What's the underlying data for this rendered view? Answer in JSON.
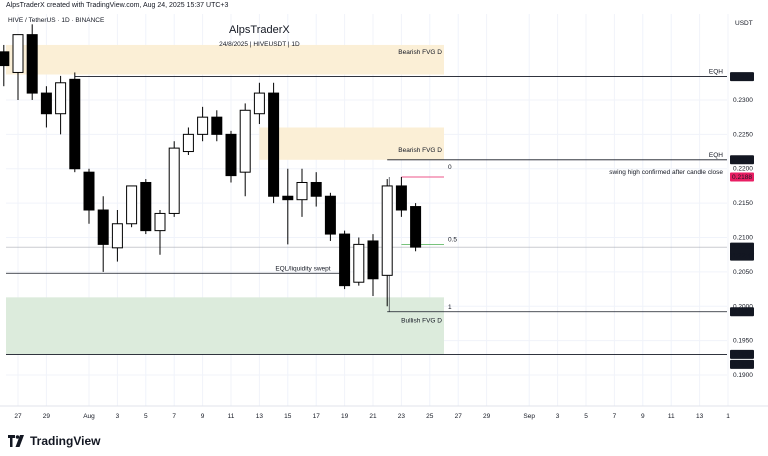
{
  "header": {
    "created_by": "AlpsTraderX created with TradingView.com, Aug 24, 2025 15:37 UTC+3",
    "symbol_line": "HIVE / TetherUS · 1D · BINANCE",
    "watermark_title": "AlpsTraderX",
    "watermark_sub": "24/8/2025 | HIVEUSDT | 1D"
  },
  "footer": {
    "brand": "TradingView"
  },
  "colors": {
    "bear_zone": "#fbefd6",
    "bull_zone": "#dcebdc",
    "swing_line": "#e91e63",
    "mid_line": "#4caf50",
    "candle_up": "#ffffff",
    "candle_down": "#000000",
    "line": "#131722",
    "grid": "#f0f3fa"
  },
  "chart_data": {
    "type": "candlestick",
    "y_unit": "USDT",
    "ylim": [
      0.1855,
      0.2425
    ],
    "yticks": [
      0.19,
      0.195,
      0.2,
      0.205,
      0.21,
      0.215,
      0.22,
      0.225,
      0.23
    ],
    "ytick_labels": [
      "0.1900",
      "0.1950",
      "0.2000",
      "0.2050",
      "0.2100",
      "0.2150",
      "0.2200",
      "0.2250",
      "0.2300"
    ],
    "xticks": [
      {
        "label": "27",
        "bar": -5
      },
      {
        "label": "29",
        "bar": -3
      },
      {
        "label": "Aug",
        "bar": 0
      },
      {
        "label": "3",
        "bar": 2
      },
      {
        "label": "5",
        "bar": 4
      },
      {
        "label": "7",
        "bar": 6
      },
      {
        "label": "9",
        "bar": 8
      },
      {
        "label": "11",
        "bar": 10
      },
      {
        "label": "13",
        "bar": 12
      },
      {
        "label": "15",
        "bar": 14
      },
      {
        "label": "17",
        "bar": 16
      },
      {
        "label": "19",
        "bar": 18
      },
      {
        "label": "21",
        "bar": 20
      },
      {
        "label": "23",
        "bar": 22
      },
      {
        "label": "25",
        "bar": 24
      },
      {
        "label": "27",
        "bar": 26
      },
      {
        "label": "29",
        "bar": 28
      },
      {
        "label": "Sep",
        "bar": 31
      },
      {
        "label": "3",
        "bar": 33
      },
      {
        "label": "5",
        "bar": 35
      },
      {
        "label": "7",
        "bar": 37
      },
      {
        "label": "9",
        "bar": 39
      },
      {
        "label": "11",
        "bar": 41
      },
      {
        "label": "13",
        "bar": 43
      },
      {
        "label": "1",
        "bar": 45
      }
    ],
    "candles": [
      {
        "date": "2025-07-26",
        "o": 0.237,
        "h": 0.238,
        "l": 0.232,
        "c": 0.235
      },
      {
        "date": "2025-07-27",
        "o": 0.234,
        "h": 0.2395,
        "l": 0.23,
        "c": 0.2395
      },
      {
        "date": "2025-07-28",
        "o": 0.2395,
        "h": 0.241,
        "l": 0.23,
        "c": 0.231
      },
      {
        "date": "2025-07-29",
        "o": 0.231,
        "h": 0.232,
        "l": 0.226,
        "c": 0.228
      },
      {
        "date": "2025-07-30",
        "o": 0.228,
        "h": 0.2335,
        "l": 0.225,
        "c": 0.2325
      },
      {
        "date": "2025-07-31",
        "o": 0.233,
        "h": 0.234,
        "l": 0.2195,
        "c": 0.22
      },
      {
        "date": "2025-08-01",
        "o": 0.2195,
        "h": 0.22,
        "l": 0.212,
        "c": 0.214
      },
      {
        "date": "2025-08-02",
        "o": 0.214,
        "h": 0.216,
        "l": 0.205,
        "c": 0.209
      },
      {
        "date": "2025-08-03",
        "o": 0.2085,
        "h": 0.214,
        "l": 0.2065,
        "c": 0.212
      },
      {
        "date": "2025-08-04",
        "o": 0.212,
        "h": 0.2175,
        "l": 0.2115,
        "c": 0.2175
      },
      {
        "date": "2025-08-05",
        "o": 0.218,
        "h": 0.2185,
        "l": 0.2105,
        "c": 0.211
      },
      {
        "date": "2025-08-06",
        "o": 0.211,
        "h": 0.214,
        "l": 0.2075,
        "c": 0.2135
      },
      {
        "date": "2025-08-07",
        "o": 0.2135,
        "h": 0.224,
        "l": 0.213,
        "c": 0.223
      },
      {
        "date": "2025-08-08",
        "o": 0.2225,
        "h": 0.226,
        "l": 0.222,
        "c": 0.225
      },
      {
        "date": "2025-08-09",
        "o": 0.225,
        "h": 0.229,
        "l": 0.224,
        "c": 0.2275
      },
      {
        "date": "2025-08-10",
        "o": 0.2275,
        "h": 0.2285,
        "l": 0.224,
        "c": 0.225
      },
      {
        "date": "2025-08-11",
        "o": 0.225,
        "h": 0.2255,
        "l": 0.218,
        "c": 0.219
      },
      {
        "date": "2025-08-12",
        "o": 0.2195,
        "h": 0.2295,
        "l": 0.216,
        "c": 0.2285
      },
      {
        "date": "2025-08-13",
        "o": 0.228,
        "h": 0.2325,
        "l": 0.2265,
        "c": 0.231
      },
      {
        "date": "2025-08-14",
        "o": 0.231,
        "h": 0.2325,
        "l": 0.215,
        "c": 0.216
      },
      {
        "date": "2025-08-15",
        "o": 0.216,
        "h": 0.22,
        "l": 0.209,
        "c": 0.2155
      },
      {
        "date": "2025-08-16",
        "o": 0.2155,
        "h": 0.22,
        "l": 0.213,
        "c": 0.218
      },
      {
        "date": "2025-08-17",
        "o": 0.218,
        "h": 0.2195,
        "l": 0.2145,
        "c": 0.216
      },
      {
        "date": "2025-08-18",
        "o": 0.216,
        "h": 0.2165,
        "l": 0.2095,
        "c": 0.2105
      },
      {
        "date": "2025-08-19",
        "o": 0.2105,
        "h": 0.211,
        "l": 0.2025,
        "c": 0.203
      },
      {
        "date": "2025-08-20",
        "o": 0.2035,
        "h": 0.21,
        "l": 0.203,
        "c": 0.209
      },
      {
        "date": "2025-08-21",
        "o": 0.2095,
        "h": 0.2105,
        "l": 0.2015,
        "c": 0.204
      },
      {
        "date": "2025-08-22",
        "o": 0.2045,
        "h": 0.2185,
        "l": 0.2,
        "c": 0.2175
      },
      {
        "date": "2025-08-23",
        "o": 0.2175,
        "h": 0.2188,
        "l": 0.213,
        "c": 0.214
      },
      {
        "date": "2025-08-24",
        "o": 0.2145,
        "h": 0.215,
        "l": 0.208,
        "c": 0.2086
      }
    ],
    "zones": [
      {
        "label": "Bearish FVG D",
        "from_bar": -6,
        "to_bar": 25,
        "low": 0.2337,
        "high": 0.238,
        "kind": "bear"
      },
      {
        "label": "Bearish FVG D",
        "from_bar": 12,
        "to_bar": 25,
        "low": 0.2213,
        "high": 0.226,
        "kind": "bear"
      },
      {
        "label": "Bullish FVG D",
        "from_bar": -6,
        "to_bar": 25,
        "low": 0.193,
        "high": 0.2013,
        "kind": "bull"
      }
    ],
    "lines": [
      {
        "name": "eqh-top",
        "price": 0.2334,
        "from_bar": -1,
        "label": "EQH"
      },
      {
        "name": "eqh-mid",
        "price": 0.2213,
        "from_bar": 21,
        "label": "EQH"
      },
      {
        "name": "swing-high",
        "price": 0.2188,
        "from_bar": 22,
        "to_bar": 25,
        "label": "swing high confirmed after candle close"
      },
      {
        "name": "fib-mid",
        "price": 0.209,
        "from_bar": 22,
        "to_bar": 25,
        "label": "0.5"
      },
      {
        "name": "eql",
        "price": 0.2048,
        "from_bar": -6,
        "to_bar": 18,
        "label": "EQL/liquidity swept"
      },
      {
        "name": "fib-one",
        "price": 0.1992,
        "from_bar": 21,
        "label": "1"
      },
      {
        "name": "low-line",
        "price": 0.193,
        "from_bar": -6
      },
      {
        "name": "current",
        "price": 0.2086,
        "from_bar": -6
      }
    ],
    "fib_zero_label": "0",
    "price_tags": [
      {
        "price": 0.2334,
        "text": "0.2334",
        "kind": "dark"
      },
      {
        "price": 0.2213,
        "text": "0.2213",
        "kind": "dark"
      },
      {
        "price": 0.2188,
        "text": "0.2188",
        "kind": "pink"
      },
      {
        "price": 0.2086,
        "text": "0.2086",
        "sub": "11:22:47",
        "kind": "dark"
      },
      {
        "price": 0.1992,
        "text": "0.1992",
        "kind": "dark"
      },
      {
        "price": 0.193,
        "text": "0.1930",
        "kind": "dark"
      },
      {
        "price": 0.193,
        "text": "0.1930",
        "kind": "dark",
        "offset": 1
      }
    ]
  }
}
